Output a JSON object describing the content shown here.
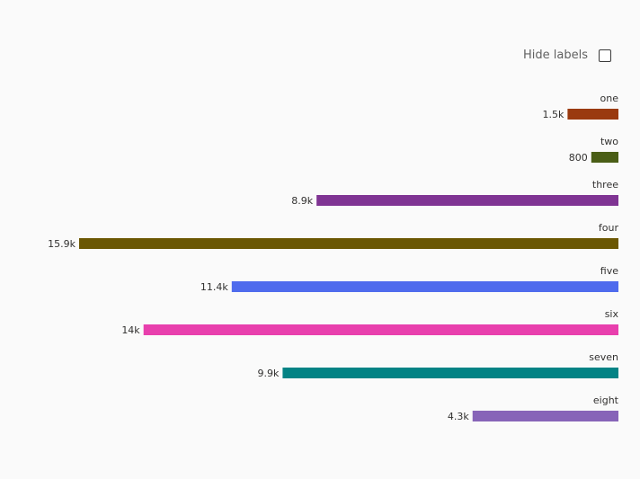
{
  "controls": {
    "hide_labels_label": "Hide labels",
    "hide_labels_checked": false
  },
  "chart_data": {
    "type": "bar",
    "orientation": "horizontal",
    "title": "",
    "xlabel": "",
    "ylabel": "",
    "xlim": [
      0,
      16000
    ],
    "grid": false,
    "legend": "none",
    "categories": [
      "one",
      "two",
      "three",
      "four",
      "five",
      "six",
      "seven",
      "eight"
    ],
    "values": [
      1500,
      800,
      8900,
      15900,
      11400,
      14000,
      9900,
      4300
    ],
    "value_labels": [
      "1.5k",
      "800",
      "8.9k",
      "15.9k",
      "11.4k",
      "14k",
      "9.9k",
      "4.3k"
    ],
    "colors": [
      "#9a3a0f",
      "#4a5e16",
      "#7f3493",
      "#6b5703",
      "#4f6bed",
      "#e83fad",
      "#038385",
      "#8764b8"
    ]
  }
}
